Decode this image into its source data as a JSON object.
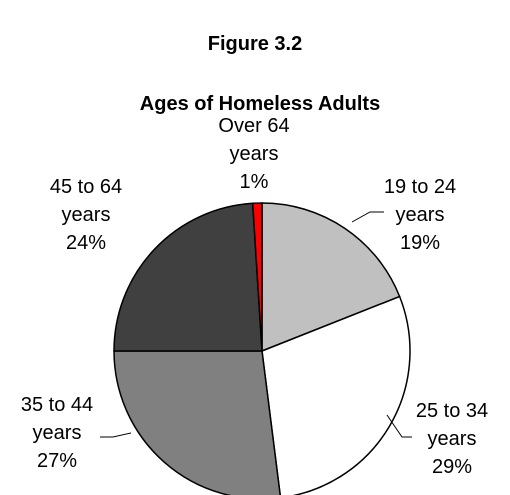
{
  "chart_data": {
    "type": "pie",
    "title": "Figure 3.2",
    "subtitle": "Ages of Homeless Adults",
    "start_angle_deg": 0,
    "direction": "clockwise",
    "slices": [
      {
        "label_lines": [
          "19 to 24",
          "years"
        ],
        "value": 19,
        "value_label": "19%",
        "color": "#c0c0c0"
      },
      {
        "label_lines": [
          "25 to 34",
          "years"
        ],
        "value": 29,
        "value_label": "29%",
        "color": "#ffffff"
      },
      {
        "label_lines": [
          "35 to 44",
          "years"
        ],
        "value": 27,
        "value_label": "27%",
        "color": "#808080"
      },
      {
        "label_lines": [
          "45 to 64",
          "years"
        ],
        "value": 24,
        "value_label": "24%",
        "color": "#404040"
      },
      {
        "label_lines": [
          "Over 64",
          "years"
        ],
        "value": 1,
        "value_label": "1%",
        "color": "#ff0000"
      }
    ]
  }
}
